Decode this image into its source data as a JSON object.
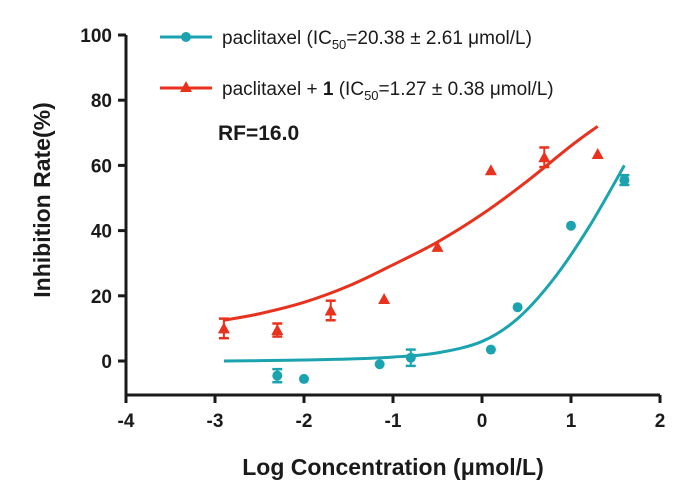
{
  "chart_data": {
    "type": "scatter",
    "xlabel": "Log Concentration (μmol/L)",
    "ylabel": "Inhibition Rate(%)",
    "xlim": [
      -4,
      2
    ],
    "ylim": [
      -10,
      100
    ],
    "xticks": [
      "-4",
      "-3",
      "-2",
      "-1",
      "0",
      "1",
      "2"
    ],
    "yticks": [
      "0",
      "20",
      "40",
      "60",
      "80",
      "100"
    ],
    "annotation": "RF=16.0",
    "legend_position": "top",
    "series": [
      {
        "name": "paclitaxel",
        "legend": {
          "name": "paclitaxel",
          "ic50_prefix": " (IC",
          "sub": "50",
          "ic50_value": "=20.38 ± 2.61 μmol/L)"
        },
        "color": "#1ba3b0",
        "marker": "circle",
        "points": [
          {
            "x": -2.3,
            "y": -4.5,
            "err": 2
          },
          {
            "x": -2.0,
            "y": -5.5,
            "err": 0
          },
          {
            "x": -1.15,
            "y": -1,
            "err": 0
          },
          {
            "x": -0.8,
            "y": 1,
            "err": 2.5
          },
          {
            "x": 0.1,
            "y": 3.5,
            "err": 0
          },
          {
            "x": 0.4,
            "y": 16.5,
            "err": 0
          },
          {
            "x": 1.0,
            "y": 41.5,
            "err": 0
          },
          {
            "x": 1.6,
            "y": 55.5,
            "err": 1.5
          }
        ],
        "fit": [
          [
            -2.9,
            0
          ],
          [
            -2.5,
            0.1
          ],
          [
            -2,
            0.3
          ],
          [
            -1.5,
            0.6
          ],
          [
            -1,
            1.2
          ],
          [
            -0.5,
            2.5
          ],
          [
            0,
            6
          ],
          [
            0.4,
            13
          ],
          [
            0.8,
            25
          ],
          [
            1.2,
            41
          ],
          [
            1.6,
            60
          ]
        ]
      },
      {
        "name": "paclitaxel + 1",
        "legend": {
          "name": "paclitaxel + ",
          "bold": "1",
          "ic50_prefix": " (IC",
          "sub": "50",
          "ic50_value": "=1.27 ± 0.38 μmol/L)"
        },
        "color": "#e8321e",
        "marker": "triangle",
        "points": [
          {
            "x": -2.9,
            "y": 10,
            "err": 3
          },
          {
            "x": -2.3,
            "y": 9.5,
            "err": 2
          },
          {
            "x": -1.7,
            "y": 15.5,
            "err": 3
          },
          {
            "x": -1.1,
            "y": 19,
            "err": 0
          },
          {
            "x": -0.5,
            "y": 35,
            "err": 0
          },
          {
            "x": 0.1,
            "y": 58.5,
            "err": 0
          },
          {
            "x": 0.7,
            "y": 62.5,
            "err": 3
          },
          {
            "x": 1.3,
            "y": 63.5,
            "err": 0
          }
        ],
        "fit": [
          [
            -2.9,
            12.5
          ],
          [
            -2.5,
            14.5
          ],
          [
            -2,
            18
          ],
          [
            -1.5,
            23
          ],
          [
            -1,
            29.5
          ],
          [
            -0.5,
            36.5
          ],
          [
            0,
            45
          ],
          [
            0.5,
            55
          ],
          [
            1.0,
            66
          ],
          [
            1.3,
            72
          ]
        ]
      }
    ]
  }
}
